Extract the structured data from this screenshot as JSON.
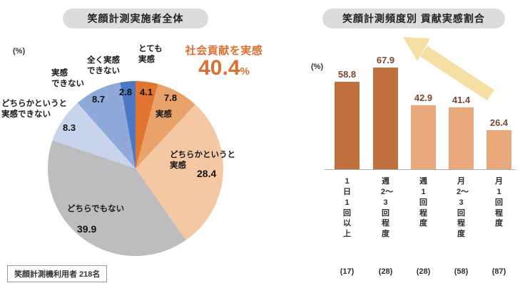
{
  "left_panel": {
    "title": "笑顔計測実施者全体",
    "unit_label": "(%)",
    "highlight": {
      "label": "社会貢献を実感",
      "value": "40.4",
      "unit": "%"
    },
    "footnote": "笑顔計測機利用者 218名",
    "display_labels": {
      "totemo": "とても\n実感",
      "mattaku": "全く実感\nできない",
      "jikkan_dekinai": "実感\nできない",
      "dochira_dekinai": "どちらかというと\n実感できない",
      "jikkan": "実感",
      "dochira_jikkan": "どちらかというと\n実感",
      "dochira_demonai": "どちらでもない"
    }
  },
  "right_panel": {
    "title": "笑顔計測頻度別 貢献実感割合",
    "unit_label": "(%)"
  },
  "colors": {
    "pill_background": "#dcdcdc",
    "highlight_orange": "#dc7030",
    "bar_dark": "#c0703c",
    "bar_light": "#eaa87d",
    "bar_value_text": "#7d482c",
    "arrow_yellow": "#f5dfa2",
    "axis_gray": "#adadad"
  },
  "chart_data": [
    {
      "type": "pie",
      "title": "笑顔計測実施者全体",
      "unit": "%",
      "slices": [
        {
          "label": "とても実感",
          "value": 4.1,
          "color": "#df7530"
        },
        {
          "label": "実感",
          "value": 7.8,
          "color": "#e9a269"
        },
        {
          "label": "どちらかというと実感",
          "value": 28.4,
          "color": "#f3c8a2"
        },
        {
          "label": "どちらでもない",
          "value": 39.9,
          "color": "#bdbcbe"
        },
        {
          "label": "どちらかというと実感できない",
          "value": 8.3,
          "color": "#c8d4ec"
        },
        {
          "label": "実感できない",
          "value": 8.7,
          "color": "#8fa9da"
        },
        {
          "label": "全く実感できない",
          "value": 2.8,
          "color": "#4c78c4"
        }
      ],
      "annotation": "社会貢献を実感 40.4%",
      "note": "笑顔計測機利用者 218名"
    },
    {
      "type": "bar",
      "title": "笑顔計測頻度別 貢献実感割合",
      "unit": "%",
      "categories": [
        "1日1回以上",
        "週2〜3回程度",
        "週1回程度",
        "月2〜3回程度",
        "月1回程度"
      ],
      "values": [
        58.8,
        67.9,
        42.9,
        41.4,
        26.4
      ],
      "counts": [
        "(17)",
        "(28)",
        "(28)",
        "(58)",
        "(87)"
      ],
      "bar_colors": [
        "#c0703c",
        "#c0703c",
        "#eaa87d",
        "#eaa87d",
        "#eaa87d"
      ],
      "ylim": [
        0,
        75
      ],
      "grid": false,
      "legend": false
    }
  ]
}
